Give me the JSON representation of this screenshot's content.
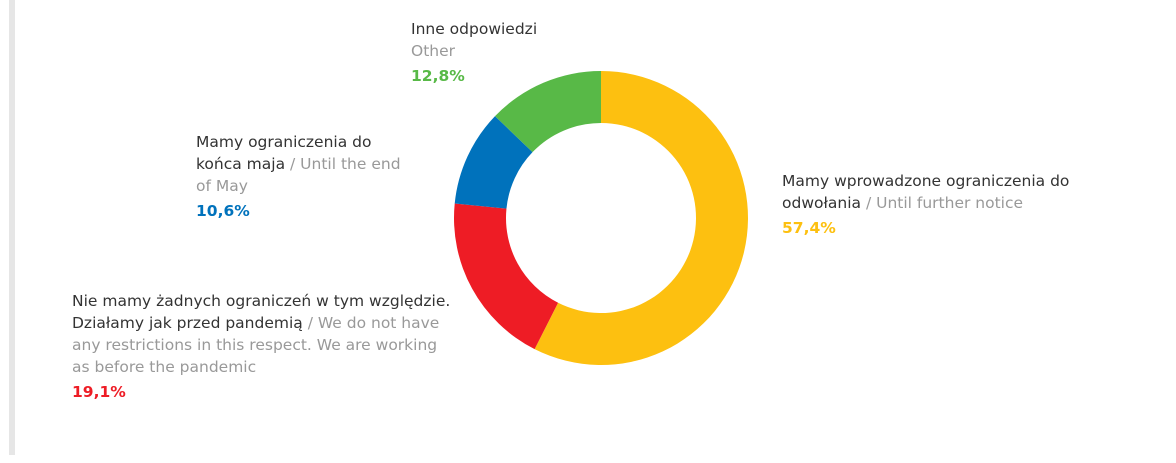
{
  "chart_data": {
    "type": "donut",
    "categories": [
      "Mamy wprowadzone ograniczenia do odwołania",
      "Nie mamy żadnych ograniczeń w tym względzie. Działamy jak przed pandemią",
      "Mamy ograniczenia do końca maja",
      "Inne odpowiedzi"
    ],
    "categories_en": [
      "/ Until further notice",
      "/ We do not have any restrictions in this respect. We are working as before the pandemic",
      "/ Until the end of May",
      "Other"
    ],
    "values": [
      57.4,
      19.1,
      10.6,
      12.8
    ],
    "value_labels": [
      "57,4%",
      "19,1%",
      "10,6%",
      "12,8%"
    ],
    "colors": [
      "#fdc010",
      "#ee1c25",
      "#0072bc",
      "#58b947"
    ]
  }
}
